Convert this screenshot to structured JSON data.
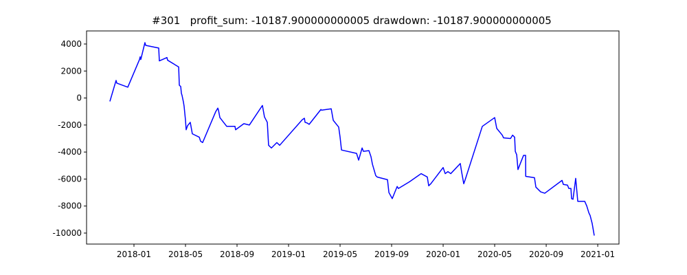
{
  "chart_data": {
    "type": "line",
    "title": "#301   profit_sum: -10187.900000000005 drawdown: -10187.900000000005",
    "x": [
      -1.87,
      -1.39,
      -1.33,
      -0.48,
      0.43,
      0.48,
      0.53,
      0.85,
      0.91,
      1.92,
      1.97,
      2.56,
      2.61,
      3.47,
      3.52,
      3.63,
      3.68,
      3.73,
      3.84,
      3.89,
      4.0,
      4.05,
      4.16,
      4.37,
      4.53,
      5.07,
      5.17,
      5.33,
      6.35,
      6.51,
      6.56,
      6.67,
      7.2,
      7.84,
      7.89,
      8.53,
      8.96,
      9.97,
      10.13,
      10.35,
      10.45,
      10.67,
      11.09,
      11.31,
      13.07,
      13.23,
      13.28,
      13.44,
      13.6,
      14.51,
      14.56,
      15.31,
      15.47,
      15.89,
      16.0,
      16.11,
      17.28,
      17.44,
      17.71,
      17.81,
      18.24,
      18.4,
      18.51,
      18.77,
      18.88,
      19.68,
      19.79,
      20.05,
      20.43,
      20.53,
      21.39,
      22.29,
      22.77,
      22.88,
      23.04,
      24.0,
      24.16,
      24.37,
      24.59,
      25.33,
      25.44,
      25.6,
      25.71,
      27.04,
      28.0,
      28.16,
      28.59,
      28.69,
      29.23,
      29.39,
      29.55,
      29.6,
      29.71,
      29.81,
      29.97,
      30.24,
      30.4,
      30.41,
      31.09,
      31.2,
      31.57,
      31.89,
      33.23,
      33.33,
      33.65,
      33.76,
      33.92,
      33.97,
      34.08,
      34.29,
      34.45,
      34.99,
      35.15,
      35.31,
      35.41,
      35.57,
      35.73
    ],
    "series": [
      {
        "color": "#0000ff",
        "values": [
          -250,
          1300,
          1100,
          800,
          2850,
          3050,
          2850,
          4100,
          3900,
          3700,
          2750,
          3000,
          2800,
          2300,
          950,
          850,
          350,
          200,
          -300,
          -600,
          -1650,
          -2350,
          -2050,
          -1800,
          -2650,
          -2900,
          -3200,
          -3300,
          -1000,
          -750,
          -900,
          -1450,
          -2100,
          -2100,
          -2350,
          -1900,
          -2000,
          -550,
          -1400,
          -1800,
          -3500,
          -3700,
          -3300,
          -3500,
          -1600,
          -1500,
          -1800,
          -1850,
          -1950,
          -850,
          -900,
          -800,
          -1650,
          -2150,
          -2900,
          -3850,
          -4100,
          -4600,
          -3700,
          -3950,
          -3900,
          -4350,
          -4900,
          -5750,
          -5850,
          -6050,
          -7000,
          -7450,
          -6550,
          -6700,
          -6200,
          -5600,
          -5850,
          -6500,
          -6350,
          -5150,
          -5600,
          -5450,
          -5600,
          -4850,
          -5500,
          -6350,
          -6050,
          -2100,
          -1450,
          -2250,
          -2750,
          -2950,
          -3000,
          -2750,
          -2900,
          -3950,
          -4200,
          -5300,
          -4900,
          -4250,
          -4250,
          -5800,
          -5900,
          -6600,
          -6950,
          -7050,
          -6100,
          -6400,
          -6450,
          -6700,
          -6700,
          -7450,
          -7500,
          -5950,
          -7650,
          -7650,
          -8000,
          -8500,
          -8700,
          -9300,
          -10187.9
        ]
      }
    ],
    "xlim": [
      -3.68,
      37.65
    ],
    "xticks": [
      {
        "value": 0,
        "label": "2018-01"
      },
      {
        "value": 4,
        "label": "2018-05"
      },
      {
        "value": 8,
        "label": "2018-09"
      },
      {
        "value": 12,
        "label": "2019-01"
      },
      {
        "value": 16,
        "label": "2019-05"
      },
      {
        "value": 20,
        "label": "2019-09"
      },
      {
        "value": 24,
        "label": "2020-01"
      },
      {
        "value": 28,
        "label": "2020-05"
      },
      {
        "value": 32,
        "label": "2020-09"
      },
      {
        "value": 36,
        "label": "2021-01"
      }
    ],
    "ylim": [
      -10815,
      4967
    ],
    "yticks": [
      -10000,
      -8000,
      -6000,
      -4000,
      -2000,
      0,
      2000,
      4000
    ]
  }
}
